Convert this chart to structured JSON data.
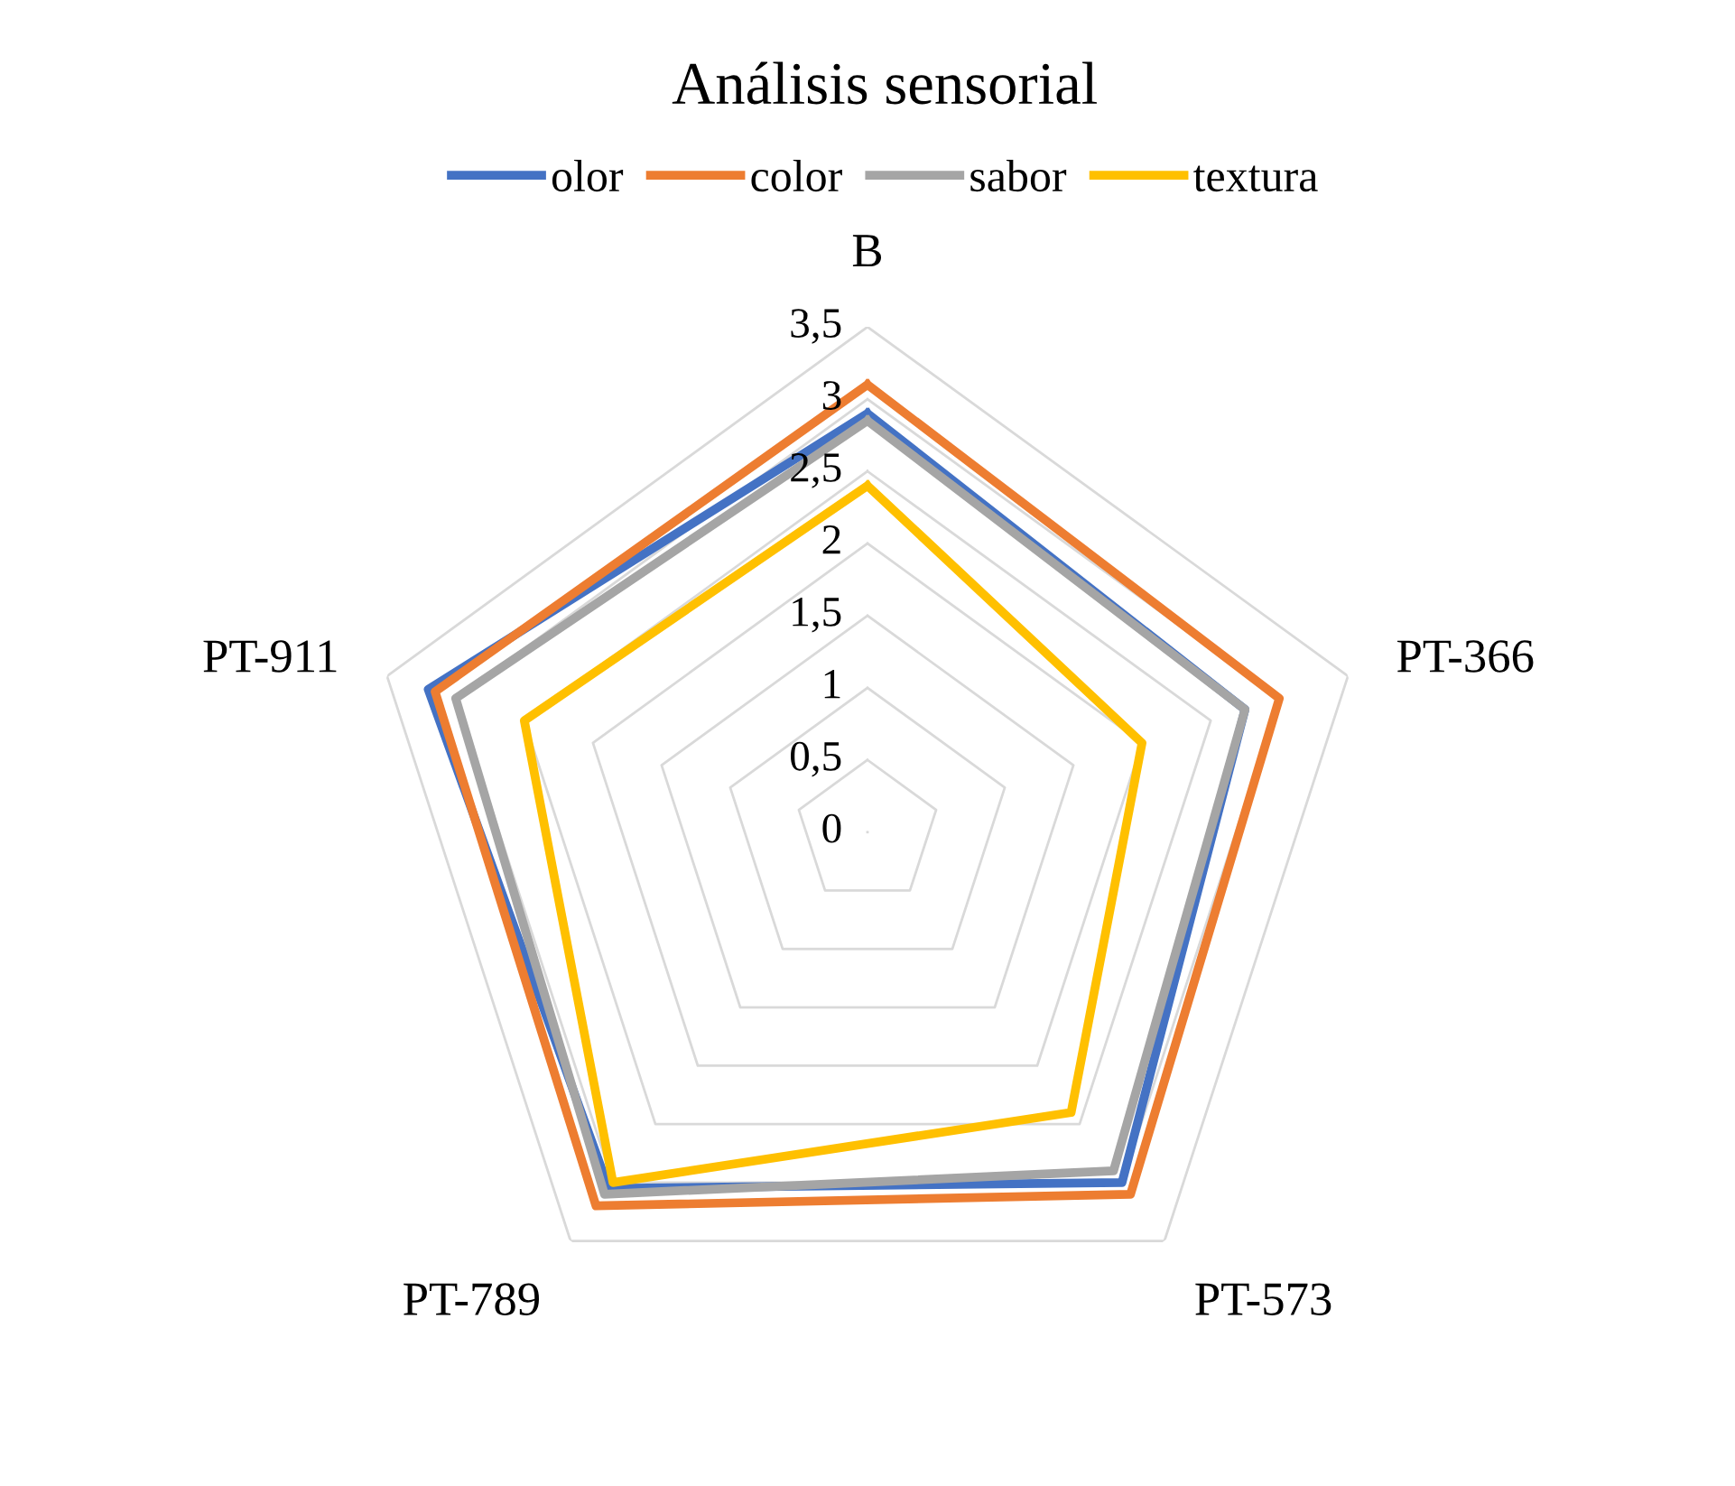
{
  "chart_data": {
    "type": "radar",
    "title": "Análisis sensorial",
    "categories": [
      "B",
      "PT-366",
      "PT-573",
      "PT-789",
      "PT-911"
    ],
    "series": [
      {
        "name": "olor",
        "color": "#4472c4",
        "values": [
          2.9,
          2.75,
          3.0,
          3.05,
          3.2
        ]
      },
      {
        "name": "color",
        "color": "#ed7d31",
        "values": [
          3.1,
          3.0,
          3.1,
          3.2,
          3.15
        ]
      },
      {
        "name": "sabor",
        "color": "#a5a5a5",
        "values": [
          2.85,
          2.75,
          2.9,
          3.1,
          3.0
        ]
      },
      {
        "name": "textura",
        "color": "#ffc000",
        "values": [
          2.4,
          2.0,
          2.4,
          3.0,
          2.5
        ]
      }
    ],
    "ylim": [
      0,
      3.5
    ],
    "yticks": [
      0,
      {
        "value": 0.5,
        "label": "0,5"
      },
      1,
      {
        "value": 1.5,
        "label": "1,5"
      },
      2,
      {
        "value": 2.5,
        "label": "2,5"
      },
      3,
      {
        "value": 3.5,
        "label": "3,5"
      }
    ],
    "grid": true,
    "legend": "top",
    "marker": "none",
    "line_style": "solid"
  }
}
